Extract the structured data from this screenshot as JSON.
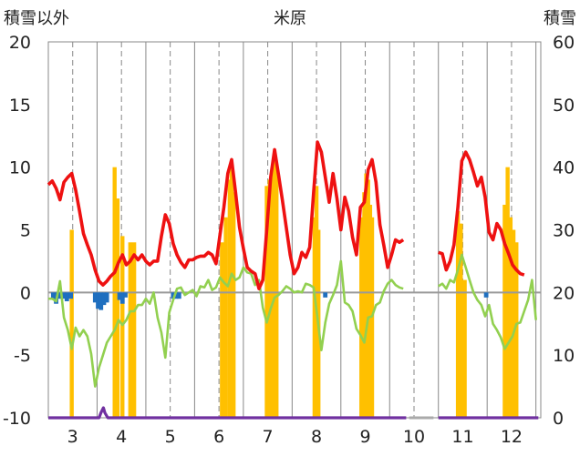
{
  "chart_data": {
    "type": "bar+line",
    "title": "米原",
    "left_axis_label": "積雪以外",
    "right_axis_label": "積雪",
    "y_left": {
      "min": -10,
      "max": 20,
      "ticks": [
        -10,
        -5,
        0,
        5,
        10,
        15,
        20
      ]
    },
    "y_right": {
      "min": 0,
      "max": 60,
      "ticks": [
        0,
        10,
        20,
        30,
        40,
        50,
        60
      ]
    },
    "x_labels": [
      "3",
      "4",
      "5",
      "6",
      "7",
      "8",
      "9",
      "10",
      "11",
      "12"
    ],
    "grid": "vertical month lines (solid at month boundaries, dashed at month mid-points)",
    "colors": {
      "red_line": "#ee1111",
      "green_line": "#92d050",
      "snow_bars": "#ffc000",
      "negative_bars": "#1f6fbf",
      "purple_line": "#7030a0",
      "grid": "#888888",
      "zero_line": "#999999"
    },
    "series_red": [
      [
        2.5,
        8.6
      ],
      [
        2.58,
        8.9
      ],
      [
        2.66,
        8.3
      ],
      [
        2.74,
        7.4
      ],
      [
        2.82,
        8.8
      ],
      [
        2.9,
        9.2
      ],
      [
        2.98,
        9.5
      ],
      [
        3.06,
        8.2
      ],
      [
        3.14,
        6.5
      ],
      [
        3.22,
        4.7
      ],
      [
        3.3,
        3.8
      ],
      [
        3.38,
        3.0
      ],
      [
        3.46,
        1.8
      ],
      [
        3.54,
        0.9
      ],
      [
        3.62,
        0.6
      ],
      [
        3.7,
        0.9
      ],
      [
        3.78,
        1.3
      ],
      [
        3.86,
        1.6
      ],
      [
        3.94,
        2.4
      ],
      [
        4.02,
        3.0
      ],
      [
        4.1,
        2.2
      ],
      [
        4.18,
        2.5
      ],
      [
        4.26,
        3.0
      ],
      [
        4.34,
        2.6
      ],
      [
        4.42,
        3.0
      ],
      [
        4.5,
        2.5
      ],
      [
        4.58,
        2.2
      ],
      [
        4.66,
        2.5
      ],
      [
        4.74,
        2.5
      ],
      [
        4.82,
        4.5
      ],
      [
        4.9,
        6.2
      ],
      [
        4.98,
        5.5
      ],
      [
        5.06,
        3.9
      ],
      [
        5.14,
        3.0
      ],
      [
        5.22,
        2.4
      ],
      [
        5.3,
        2.0
      ],
      [
        5.38,
        2.6
      ],
      [
        5.46,
        2.6
      ],
      [
        5.54,
        2.8
      ],
      [
        5.62,
        2.9
      ],
      [
        5.7,
        2.9
      ],
      [
        5.78,
        3.2
      ],
      [
        5.86,
        3.0
      ],
      [
        5.94,
        2.3
      ],
      [
        6.02,
        4.6
      ],
      [
        6.1,
        6.8
      ],
      [
        6.18,
        9.5
      ],
      [
        6.26,
        10.6
      ],
      [
        6.34,
        8.0
      ],
      [
        6.42,
        5.2
      ],
      [
        6.5,
        3.5
      ],
      [
        6.58,
        2.0
      ],
      [
        6.66,
        1.7
      ],
      [
        6.74,
        1.5
      ],
      [
        6.82,
        0.3
      ],
      [
        6.9,
        1.0
      ],
      [
        6.98,
        5.0
      ],
      [
        7.06,
        9.2
      ],
      [
        7.14,
        11.4
      ],
      [
        7.22,
        9.4
      ],
      [
        7.3,
        7.4
      ],
      [
        7.38,
        5.2
      ],
      [
        7.46,
        3.0
      ],
      [
        7.54,
        1.5
      ],
      [
        7.62,
        2.0
      ],
      [
        7.7,
        3.2
      ],
      [
        7.78,
        2.8
      ],
      [
        7.86,
        3.6
      ],
      [
        7.94,
        8.0
      ],
      [
        8.02,
        12.0
      ],
      [
        8.1,
        11.2
      ],
      [
        8.18,
        9.2
      ],
      [
        8.26,
        7.2
      ],
      [
        8.34,
        9.5
      ],
      [
        8.42,
        7.5
      ],
      [
        8.5,
        5.0
      ],
      [
        8.58,
        7.6
      ],
      [
        8.66,
        6.5
      ],
      [
        8.74,
        4.4
      ],
      [
        8.82,
        3.0
      ],
      [
        8.9,
        6.8
      ],
      [
        8.98,
        7.2
      ],
      [
        9.06,
        9.8
      ],
      [
        9.14,
        10.6
      ],
      [
        9.22,
        8.8
      ],
      [
        9.3,
        5.4
      ],
      [
        9.38,
        3.8
      ],
      [
        9.46,
        2.0
      ],
      [
        9.54,
        3.0
      ],
      [
        9.62,
        4.2
      ],
      [
        9.7,
        4.0
      ],
      [
        9.78,
        4.2
      ]
    ],
    "series_red_b": [
      [
        10.5,
        3.2
      ],
      [
        10.58,
        3.1
      ],
      [
        10.66,
        1.8
      ],
      [
        10.74,
        2.5
      ],
      [
        10.82,
        3.8
      ],
      [
        10.9,
        6.8
      ],
      [
        10.98,
        10.5
      ],
      [
        11.06,
        11.2
      ],
      [
        11.14,
        10.6
      ],
      [
        11.22,
        9.6
      ],
      [
        11.3,
        8.5
      ],
      [
        11.38,
        9.2
      ],
      [
        11.46,
        7.6
      ],
      [
        11.54,
        4.8
      ],
      [
        11.62,
        4.2
      ],
      [
        11.7,
        5.5
      ],
      [
        11.78,
        5.0
      ],
      [
        11.86,
        3.9
      ],
      [
        11.94,
        3.1
      ],
      [
        12.02,
        2.2
      ],
      [
        12.1,
        1.8
      ],
      [
        12.18,
        1.5
      ],
      [
        12.26,
        1.4
      ]
    ],
    "series_green": [
      [
        2.5,
        -0.5
      ],
      [
        2.58,
        -0.5
      ],
      [
        2.66,
        -0.7
      ],
      [
        2.74,
        0.9
      ],
      [
        2.82,
        -2.0
      ],
      [
        2.9,
        -3.0
      ],
      [
        2.98,
        -4.5
      ],
      [
        3.06,
        -2.8
      ],
      [
        3.14,
        -3.5
      ],
      [
        3.22,
        -3.0
      ],
      [
        3.3,
        -3.5
      ],
      [
        3.38,
        -4.9
      ],
      [
        3.46,
        -7.5
      ],
      [
        3.54,
        -6.0
      ],
      [
        3.62,
        -5.0
      ],
      [
        3.7,
        -4.0
      ],
      [
        3.78,
        -3.5
      ],
      [
        3.86,
        -3.0
      ],
      [
        3.94,
        -2.2
      ],
      [
        4.02,
        -2.6
      ],
      [
        4.1,
        -2.2
      ],
      [
        4.18,
        -1.5
      ],
      [
        4.26,
        -1.5
      ],
      [
        4.34,
        -1.0
      ],
      [
        4.42,
        -1.0
      ],
      [
        4.5,
        -0.5
      ],
      [
        4.58,
        -0.9
      ],
      [
        4.66,
        0.0
      ],
      [
        4.74,
        -2.0
      ],
      [
        4.82,
        -3.2
      ],
      [
        4.9,
        -5.2
      ],
      [
        4.98,
        -1.6
      ],
      [
        5.06,
        -0.6
      ],
      [
        5.14,
        0.3
      ],
      [
        5.22,
        0.4
      ],
      [
        5.3,
        -0.2
      ],
      [
        5.38,
        0.0
      ],
      [
        5.46,
        0.2
      ],
      [
        5.54,
        -0.3
      ],
      [
        5.62,
        0.5
      ],
      [
        5.7,
        0.4
      ],
      [
        5.78,
        1.0
      ],
      [
        5.86,
        0.2
      ],
      [
        5.94,
        0.4
      ],
      [
        6.02,
        1.2
      ],
      [
        6.1,
        0.8
      ],
      [
        6.18,
        0.5
      ],
      [
        6.26,
        1.5
      ],
      [
        6.34,
        1.0
      ],
      [
        6.42,
        1.2
      ],
      [
        6.5,
        2.0
      ],
      [
        6.58,
        1.6
      ],
      [
        6.66,
        1.5
      ],
      [
        6.74,
        0.6
      ],
      [
        6.82,
        1.0
      ],
      [
        6.9,
        -1.2
      ],
      [
        6.98,
        -2.4
      ],
      [
        7.06,
        -1.3
      ],
      [
        7.14,
        -0.4
      ],
      [
        7.22,
        -0.2
      ],
      [
        7.3,
        0.1
      ],
      [
        7.38,
        0.5
      ],
      [
        7.46,
        0.3
      ],
      [
        7.54,
        0.0
      ],
      [
        7.62,
        0.1
      ],
      [
        7.7,
        0.0
      ],
      [
        7.78,
        0.7
      ],
      [
        7.86,
        0.6
      ],
      [
        7.94,
        0.4
      ],
      [
        8.02,
        -2.0
      ],
      [
        8.1,
        -4.6
      ],
      [
        8.18,
        -2.4
      ],
      [
        8.26,
        -0.9
      ],
      [
        8.34,
        -0.2
      ],
      [
        8.42,
        0.6
      ],
      [
        8.5,
        2.5
      ],
      [
        8.58,
        -0.8
      ],
      [
        8.66,
        -1.0
      ],
      [
        8.74,
        -1.5
      ],
      [
        8.82,
        -2.9
      ],
      [
        8.9,
        -3.4
      ],
      [
        8.98,
        -4.0
      ],
      [
        9.06,
        -2.0
      ],
      [
        9.14,
        -1.9
      ],
      [
        9.22,
        -1.0
      ],
      [
        9.3,
        -0.8
      ],
      [
        9.38,
        0.1
      ],
      [
        9.46,
        0.7
      ],
      [
        9.54,
        1.0
      ],
      [
        9.62,
        0.6
      ],
      [
        9.7,
        0.4
      ],
      [
        9.78,
        0.3
      ]
    ],
    "series_green_b": [
      [
        10.5,
        0.5
      ],
      [
        10.58,
        0.7
      ],
      [
        10.66,
        0.3
      ],
      [
        10.74,
        1.0
      ],
      [
        10.82,
        0.8
      ],
      [
        10.9,
        1.8
      ],
      [
        10.98,
        3.0
      ],
      [
        11.06,
        2.0
      ],
      [
        11.14,
        1.0
      ],
      [
        11.22,
        0.0
      ],
      [
        11.3,
        -0.6
      ],
      [
        11.38,
        -1.0
      ],
      [
        11.46,
        -1.9
      ],
      [
        11.54,
        -1.0
      ],
      [
        11.62,
        -2.5
      ],
      [
        11.7,
        -3.0
      ],
      [
        11.78,
        -3.6
      ],
      [
        11.86,
        -4.5
      ],
      [
        11.94,
        -4.0
      ],
      [
        12.02,
        -3.5
      ],
      [
        12.1,
        -2.5
      ],
      [
        12.18,
        -2.4
      ],
      [
        12.26,
        -1.5
      ],
      [
        12.34,
        -0.6
      ],
      [
        12.42,
        1.0
      ],
      [
        12.5,
        -2.2
      ]
    ],
    "snow_bars": [
      [
        2.98,
        30
      ],
      [
        3.86,
        40
      ],
      [
        3.92,
        35
      ],
      [
        4.02,
        29
      ],
      [
        4.18,
        28
      ],
      [
        4.26,
        28
      ],
      [
        6.06,
        28
      ],
      [
        6.14,
        32
      ],
      [
        6.22,
        38
      ],
      [
        6.26,
        40
      ],
      [
        6.3,
        36
      ],
      [
        6.98,
        37
      ],
      [
        7.04,
        38
      ],
      [
        7.1,
        40
      ],
      [
        7.14,
        41
      ],
      [
        7.18,
        40
      ],
      [
        7.96,
        32
      ],
      [
        8.0,
        37
      ],
      [
        8.04,
        30
      ],
      [
        8.92,
        32
      ],
      [
        8.98,
        36
      ],
      [
        9.02,
        39
      ],
      [
        9.06,
        38
      ],
      [
        9.1,
        34
      ],
      [
        9.14,
        32
      ],
      [
        10.9,
        33
      ],
      [
        10.96,
        31
      ],
      [
        11.04,
        22
      ],
      [
        11.86,
        34
      ],
      [
        11.92,
        40
      ],
      [
        11.98,
        32
      ],
      [
        12.04,
        30
      ],
      [
        12.1,
        28
      ]
    ],
    "negative_bars": [
      [
        2.6,
        -0.5
      ],
      [
        2.66,
        -0.9
      ],
      [
        2.74,
        -0.5
      ],
      [
        2.82,
        -0.5
      ],
      [
        2.88,
        -0.7
      ],
      [
        2.96,
        -0.5
      ],
      [
        3.46,
        -0.8
      ],
      [
        3.52,
        -1.3
      ],
      [
        3.58,
        -1.4
      ],
      [
        3.64,
        -1.0
      ],
      [
        3.7,
        -0.8
      ],
      [
        3.96,
        -0.6
      ],
      [
        4.02,
        -0.9
      ],
      [
        4.08,
        -0.4
      ],
      [
        5.06,
        -0.5
      ],
      [
        5.12,
        -0.5
      ],
      [
        5.18,
        -0.5
      ],
      [
        8.18,
        -0.4
      ],
      [
        11.48,
        -0.4
      ]
    ],
    "purple_line": [
      [
        2.5,
        -10.0
      ],
      [
        3.54,
        -10.0
      ],
      [
        3.58,
        -9.6
      ],
      [
        3.63,
        -9.2
      ],
      [
        3.66,
        -9.6
      ],
      [
        3.72,
        -10.0
      ],
      [
        9.84,
        -10.0
      ]
    ],
    "purple_line_b": [
      [
        10.5,
        -10.0
      ],
      [
        12.55,
        -10.0
      ]
    ]
  }
}
